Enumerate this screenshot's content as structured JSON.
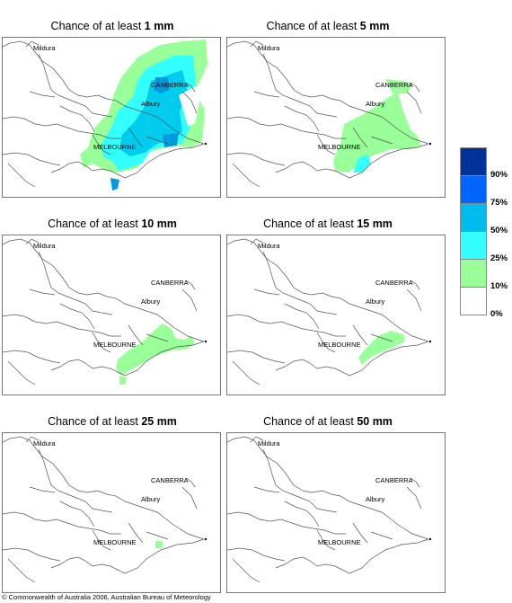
{
  "panels": [
    {
      "title_prefix": "Chance of at least",
      "amount": "1 mm"
    },
    {
      "title_prefix": "Chance of at least",
      "amount": "5 mm"
    },
    {
      "title_prefix": "Chance of at least",
      "amount": "10 mm"
    },
    {
      "title_prefix": "Chance of at least",
      "amount": "15 mm"
    },
    {
      "title_prefix": "Chance of at least",
      "amount": "25 mm"
    },
    {
      "title_prefix": "Chance of at least",
      "amount": "50 mm"
    }
  ],
  "places": {
    "mildura": "Mildura",
    "canberra": "CANBERRA",
    "albury": "Albury",
    "melbourne": "MELBOURNE"
  },
  "legend": {
    "ticks": [
      "90%",
      "75%",
      "50%",
      "25%",
      "10%",
      "0%"
    ],
    "colors": [
      "#003399",
      "#0066ff",
      "#00bbee",
      "#33ffff",
      "#99ff99",
      "#ffffff"
    ]
  },
  "colors": {
    "green": "#99ff99",
    "cyan": "#33ffff",
    "lightblue": "#00ccee",
    "blue": "#0099dd",
    "border": "#555555"
  },
  "footer": "© Commonwealth of Australia 2006, Australian Bureau of Meteorology"
}
